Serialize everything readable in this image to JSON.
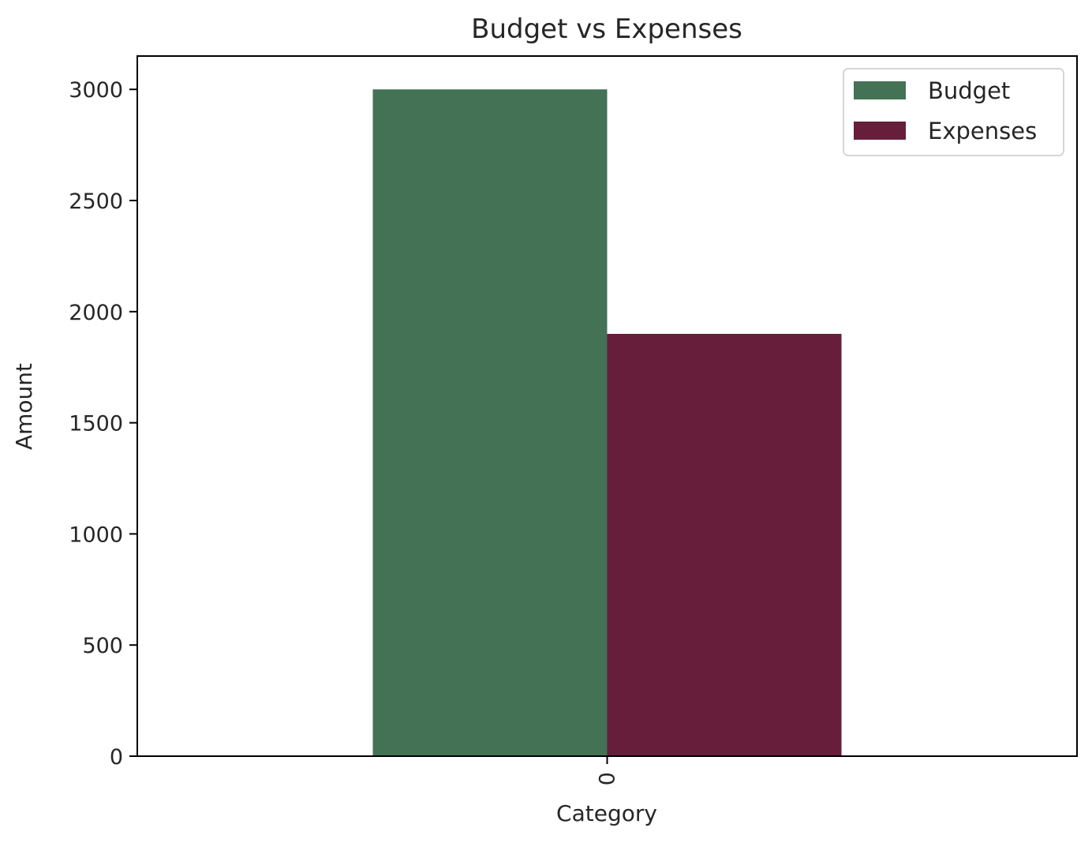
{
  "chart_data": {
    "type": "bar",
    "title": "Budget vs Expenses",
    "xlabel": "Category",
    "ylabel": "Amount",
    "categories": [
      "0"
    ],
    "series": [
      {
        "name": "Budget",
        "values": [
          3000
        ],
        "color": "#437254"
      },
      {
        "name": "Expenses",
        "values": [
          1900
        ],
        "color": "#661e3b"
      }
    ],
    "ylim": [
      0,
      3150
    ],
    "yticks": [
      0,
      500,
      1000,
      1500,
      2000,
      2500,
      3000
    ],
    "grid": false,
    "legend_position": "top-right"
  }
}
